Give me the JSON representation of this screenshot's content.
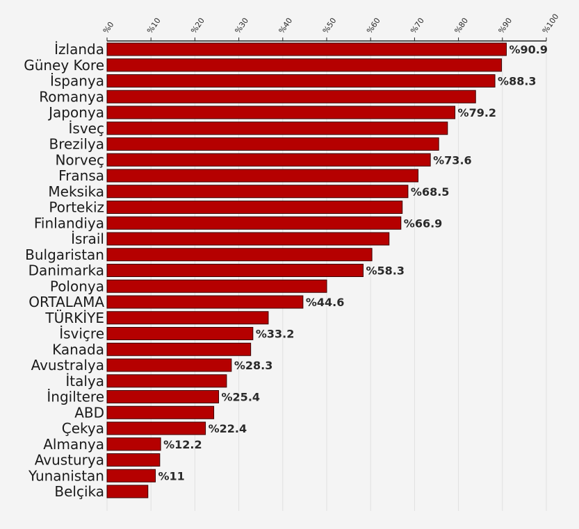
{
  "chart_data": {
    "type": "bar",
    "orientation": "horizontal",
    "xlim": [
      0,
      100
    ],
    "x_ticks": [
      0,
      10,
      20,
      30,
      40,
      50,
      60,
      70,
      80,
      90,
      100
    ],
    "tick_prefix": "%",
    "value_prefix": "%",
    "grid": true,
    "title": "",
    "xlabel": "",
    "ylabel": "",
    "bar_color": "#b50000",
    "bar_stroke": "#3a0000",
    "categories": [
      "İzlanda",
      "Güney Kore",
      "İspanya",
      "Romanya",
      "Japonya",
      "İsveç",
      "Brezilya",
      "Norveç",
      "Fransa",
      "Meksika",
      "Portekiz",
      "Finlandiya",
      "İsrail",
      "Bulgaristan",
      "Danimarka",
      "Polonya",
      "ORTALAMA",
      "TÜRKİYE",
      "İsviçre",
      "Kanada",
      "Avustralya",
      "İtalya",
      "İngiltere",
      "ABD",
      "Çekya",
      "Almanya",
      "Avusturya",
      "Yunanistan",
      "Belçika"
    ],
    "values": [
      90.9,
      89.8,
      88.3,
      83.9,
      79.2,
      77.5,
      75.5,
      73.6,
      70.8,
      68.5,
      67.2,
      66.9,
      64.2,
      60.3,
      58.3,
      50.0,
      44.6,
      36.7,
      33.2,
      32.7,
      28.3,
      27.2,
      25.4,
      24.3,
      22.4,
      12.2,
      12.0,
      11.0,
      9.3
    ],
    "data_labels": [
      "90.9",
      "",
      "88.3",
      "",
      "79.2",
      "",
      "",
      "73.6",
      "",
      "68.5",
      "",
      "66.9",
      "",
      "",
      "58.3",
      "",
      "44.6",
      "",
      "33.2",
      "",
      "28.3",
      "",
      "25.4",
      "",
      "22.4",
      "12.2",
      "",
      "11",
      ""
    ]
  }
}
